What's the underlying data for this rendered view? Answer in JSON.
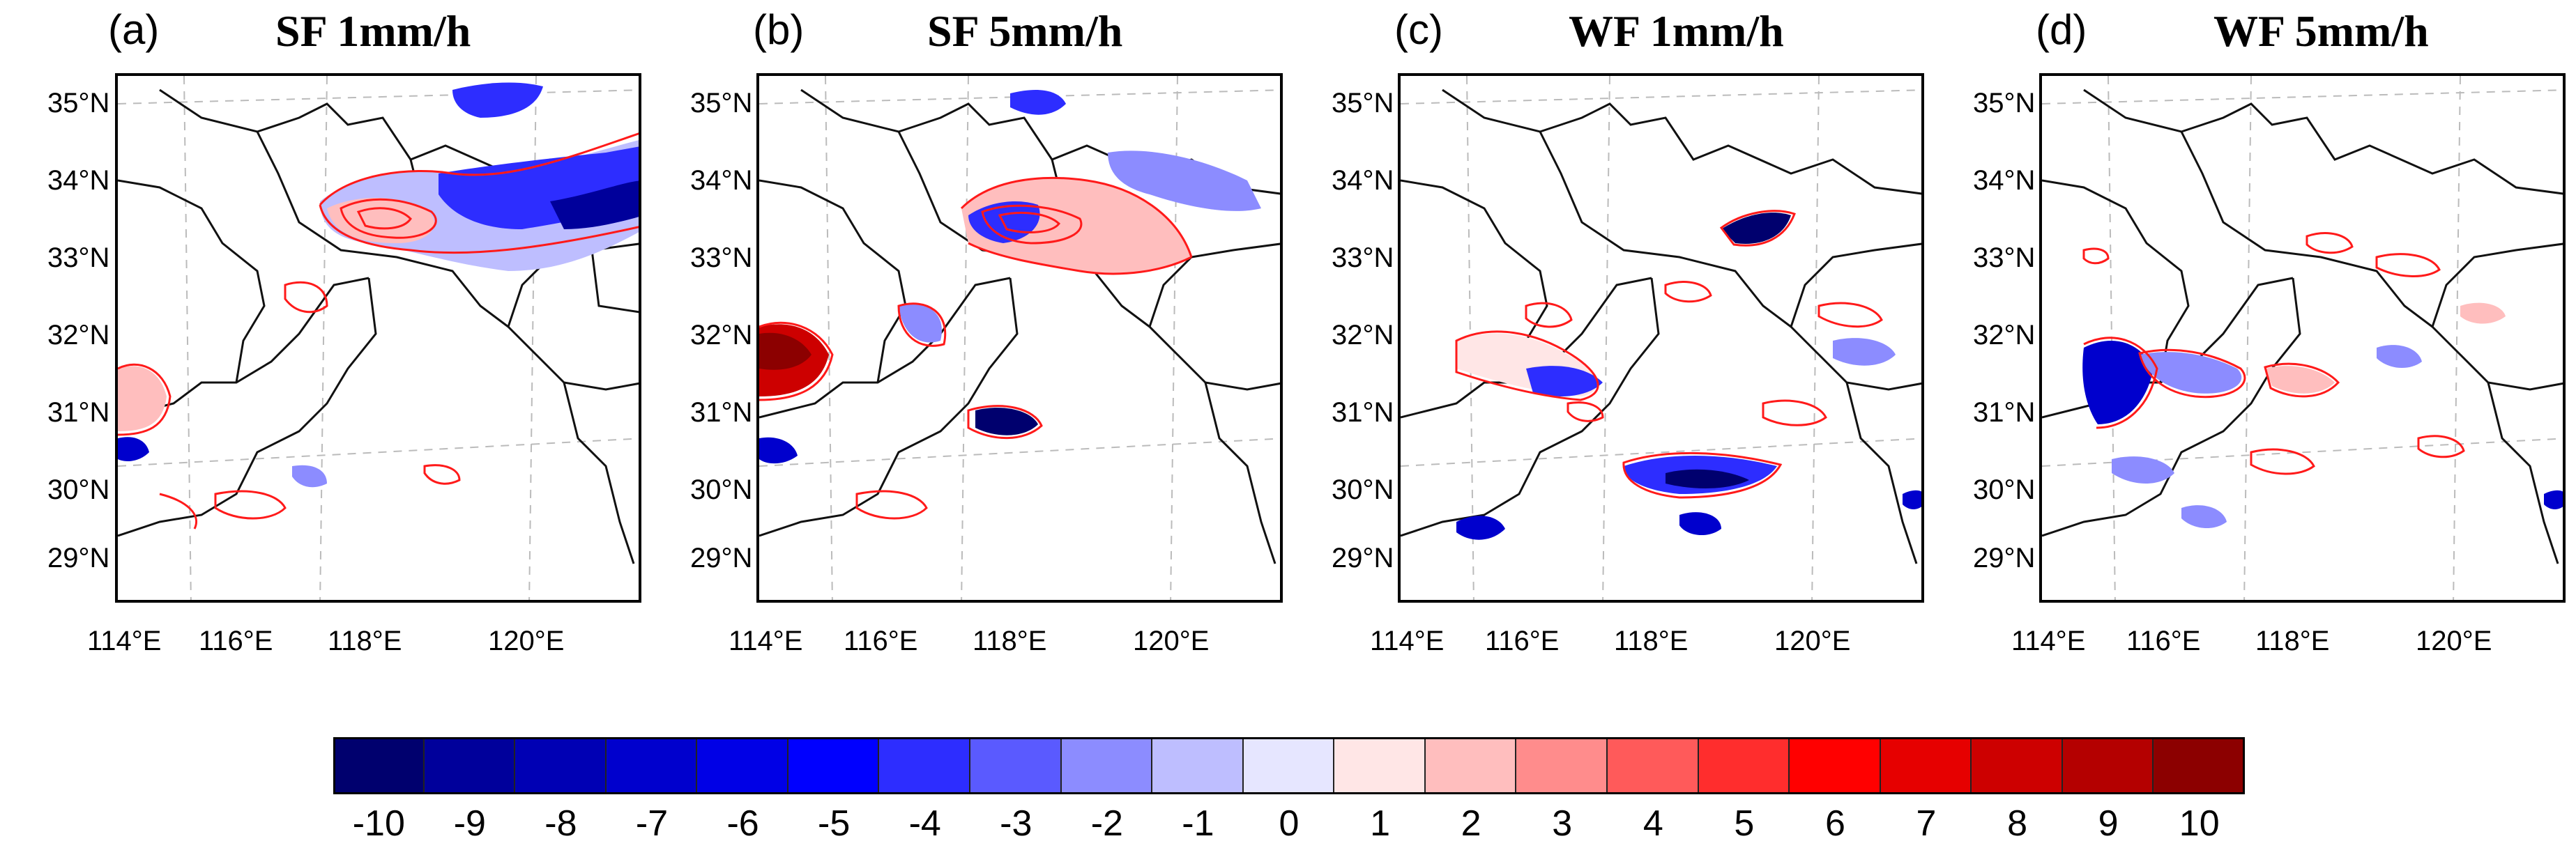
{
  "panels": [
    {
      "label": "(a)",
      "title": "SF 1mm/h"
    },
    {
      "label": "(b)",
      "title": "SF 5mm/h"
    },
    {
      "label": "(c)",
      "title": "WF 1mm/h"
    },
    {
      "label": "(d)",
      "title": "WF 5mm/h"
    }
  ],
  "axes": {
    "lat_labels": [
      "35°N",
      "34°N",
      "33°N",
      "32°N",
      "31°N",
      "30°N",
      "29°N"
    ],
    "lon_labels": [
      "114°E",
      "116°E",
      "118°E",
      "120°E"
    ]
  },
  "colorbar": {
    "ticks": [
      "-10",
      "-9",
      "-8",
      "-7",
      "-6",
      "-5",
      "-4",
      "-3",
      "-2",
      "-1",
      "0",
      "1",
      "2",
      "3",
      "4",
      "5",
      "6",
      "7",
      "8",
      "9",
      "10"
    ],
    "colors": [
      "#00006e",
      "#00009b",
      "#0000b4",
      "#0000cd",
      "#0000e6",
      "#0000ff",
      "#2d2dff",
      "#5a5aff",
      "#8c8cff",
      "#bebeff",
      "#e6e6ff",
      "#ffe6e6",
      "#ffbebe",
      "#ff8c8c",
      "#ff5a5a",
      "#ff2d2d",
      "#ff0000",
      "#e60000",
      "#cd0000",
      "#b40000",
      "#8c0000"
    ]
  }
}
